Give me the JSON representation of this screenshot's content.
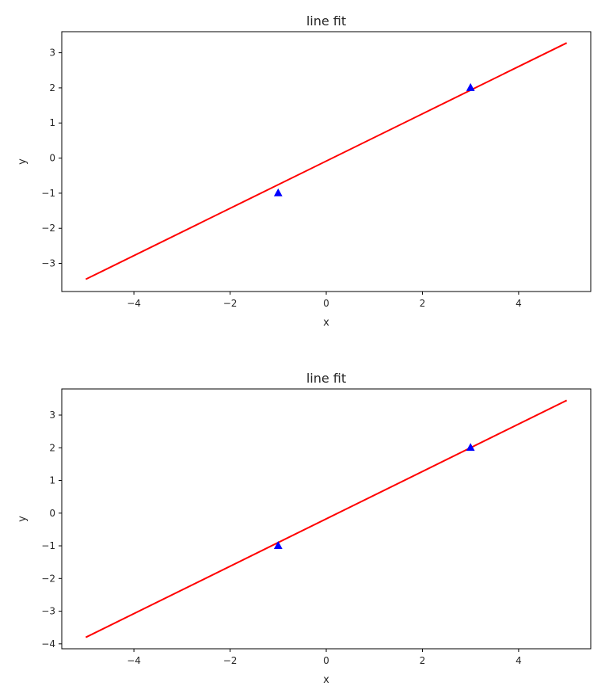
{
  "chart_data": [
    {
      "type": "line",
      "title": "line fit",
      "xlabel": "x",
      "ylabel": "y",
      "xlim": [
        -5.5,
        5.5
      ],
      "ylim": [
        -3.8,
        3.6
      ],
      "xticks": [
        -4,
        -2,
        0,
        2,
        4
      ],
      "xtick_labels": [
        "−4",
        "−2",
        "0",
        "2",
        "4"
      ],
      "yticks": [
        -3,
        -2,
        -1,
        0,
        1,
        2,
        3
      ],
      "ytick_labels": [
        "−3",
        "−2",
        "−1",
        "0",
        "1",
        "2",
        "3"
      ],
      "grid": false,
      "series": [
        {
          "kind": "line",
          "color": "#ff0000",
          "x": [
            -5,
            5
          ],
          "y": [
            -3.45,
            3.28
          ]
        },
        {
          "kind": "scatter",
          "marker": "triangle",
          "color": "#0000ff",
          "x": [
            -1,
            3
          ],
          "y": [
            -1,
            2
          ]
        }
      ]
    },
    {
      "type": "line",
      "title": "line fit",
      "xlabel": "x",
      "ylabel": "y",
      "xlim": [
        -5.5,
        5.5
      ],
      "ylim": [
        -4.15,
        3.8
      ],
      "xticks": [
        -4,
        -2,
        0,
        2,
        4
      ],
      "xtick_labels": [
        "−4",
        "−2",
        "0",
        "2",
        "4"
      ],
      "yticks": [
        -4,
        -3,
        -2,
        -1,
        0,
        1,
        2,
        3
      ],
      "ytick_labels": [
        "−4",
        "−3",
        "−2",
        "−1",
        "0",
        "1",
        "2",
        "3"
      ],
      "grid": false,
      "series": [
        {
          "kind": "line",
          "color": "#ff0000",
          "x": [
            -5,
            5
          ],
          "y": [
            -3.8,
            3.45
          ]
        },
        {
          "kind": "scatter",
          "marker": "triangle",
          "color": "#0000ff",
          "x": [
            -1,
            3
          ],
          "y": [
            -1,
            2
          ]
        }
      ]
    }
  ]
}
